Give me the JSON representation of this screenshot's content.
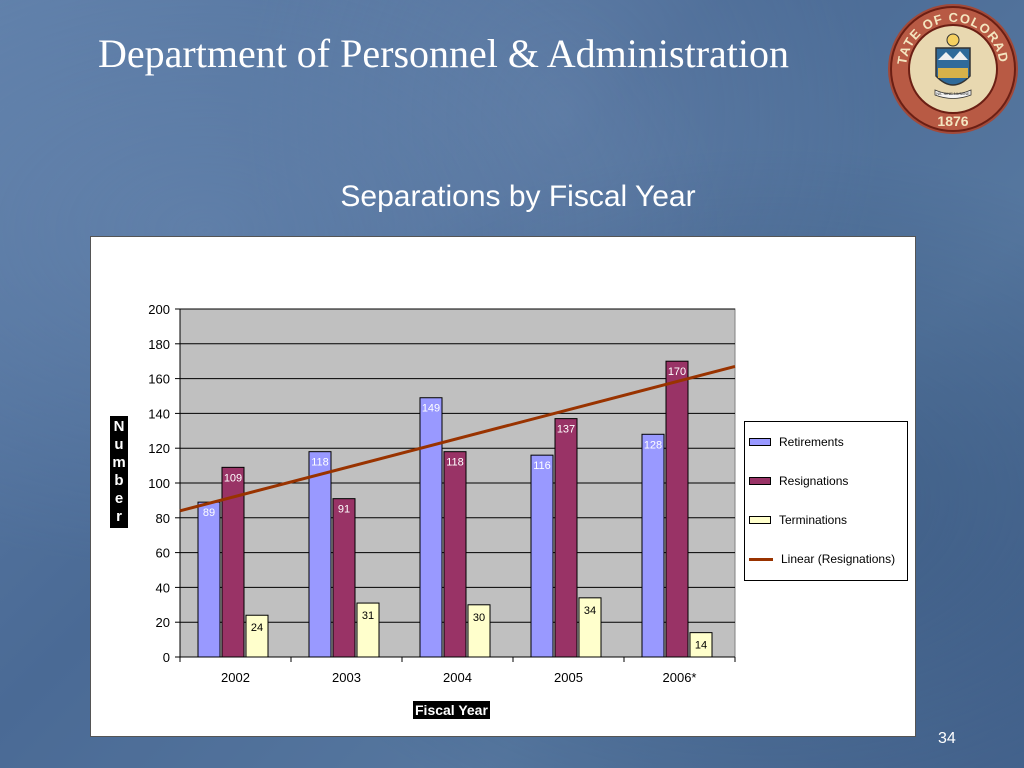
{
  "header": {
    "title": "Department of Personnel & Administration"
  },
  "seal": {
    "top_text": "STATE OF COLORADO",
    "year": "1876",
    "motto": "NIL SINE NUMINE"
  },
  "page_number": "34",
  "colors": {
    "retirements": "#9999ff",
    "resignations": "#993366",
    "terminations": "#ffffcc",
    "trend": "#993300",
    "plot_bg": "#c0c0c0"
  },
  "chart_data": {
    "type": "bar",
    "title": "Separations by Fiscal Year",
    "xlabel": "Fiscal Year",
    "ylabel": "Number",
    "categories": [
      "2002",
      "2003",
      "2004",
      "2005",
      "2006*"
    ],
    "series": [
      {
        "name": "Retirements",
        "values": [
          89,
          118,
          149,
          116,
          128
        ]
      },
      {
        "name": "Resignations",
        "values": [
          109,
          91,
          118,
          137,
          170
        ]
      },
      {
        "name": "Terminations",
        "values": [
          24,
          31,
          30,
          34,
          14
        ]
      }
    ],
    "trendline": {
      "name": "Linear (Resignations)",
      "start": 84,
      "end": 167
    },
    "ylim": [
      0,
      200
    ],
    "yticks": [
      "0",
      "20",
      "40",
      "60",
      "80",
      "100",
      "120",
      "140",
      "160",
      "180",
      "200"
    ],
    "grid": true,
    "legend": "right"
  }
}
